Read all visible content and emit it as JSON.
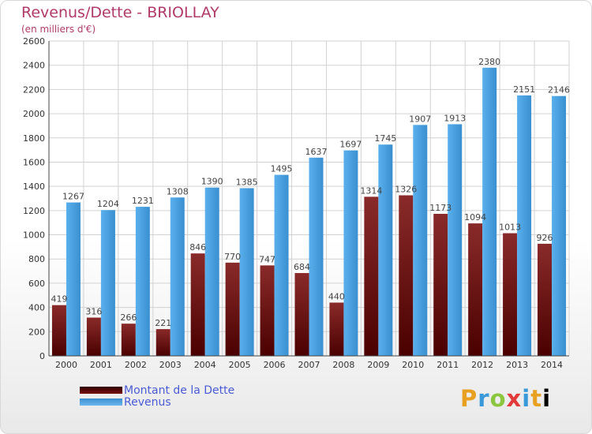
{
  "title": "Revenus/Dette - BRIOLLAY",
  "subtitle": "(en milliers d'€)",
  "legend": {
    "dette_label": "Montant de la Dette",
    "revenus_label": "Revenus"
  },
  "logo": {
    "text": "Proxiti"
  },
  "chart_data": {
    "type": "bar",
    "title": "Revenus/Dette - BRIOLLAY",
    "subtitle": "(en milliers d'€)",
    "categories": [
      "2000",
      "2001",
      "2002",
      "2003",
      "2004",
      "2005",
      "2006",
      "2007",
      "2008",
      "2009",
      "2010",
      "2011",
      "2012",
      "2013",
      "2014"
    ],
    "series": [
      {
        "name": "Montant de la Dette",
        "color": "#7a1010",
        "values": [
          419,
          316,
          266,
          221,
          846,
          770,
          747,
          684,
          440,
          1314,
          1326,
          1173,
          1094,
          1013,
          926
        ],
        "labels": [
          "419",
          "316",
          "266",
          "221",
          "846",
          "770",
          "747",
          "684",
          "440",
          "1314",
          "1326",
          "1173",
          "1094",
          "1013",
          "926"
        ]
      },
      {
        "name": "Revenus",
        "color": "#4aa3e6",
        "values": [
          1267,
          1204,
          1231,
          1308,
          1390,
          1385,
          1495,
          1637,
          1697,
          1745,
          1907,
          1913,
          2380,
          2151,
          2146
        ],
        "labels": [
          "1267",
          "1204",
          "1231",
          "1308",
          "1390",
          "1385",
          "1495",
          "1637",
          "1697",
          "1745",
          "1907",
          "1913",
          "2380",
          "2151",
          "2146"
        ]
      }
    ],
    "ylim": [
      0,
      2600
    ],
    "yticks": [
      0,
      200,
      400,
      600,
      800,
      1000,
      1200,
      1400,
      1600,
      1800,
      2000,
      2200,
      2400,
      2600
    ],
    "grid": true,
    "legend_position": "bottom-left"
  }
}
